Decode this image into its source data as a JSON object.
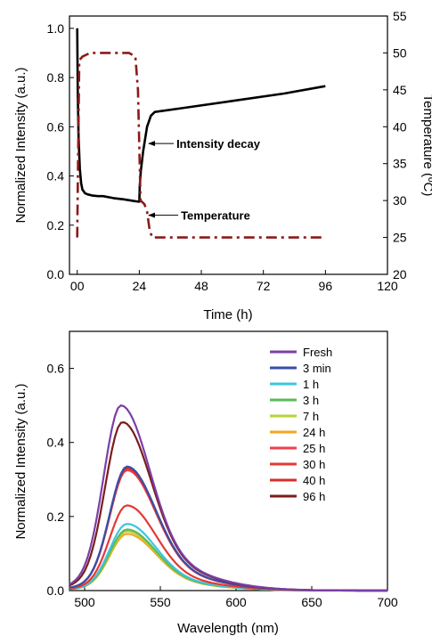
{
  "chart_data": [
    {
      "type": "line",
      "title": "",
      "xlabel": "Time (h)",
      "ylabel": "Normalized Intensity (a.u.)",
      "y2label": "Temperature (ºC)",
      "xlim": [
        -3,
        120
      ],
      "ylim": [
        0,
        1.05
      ],
      "y2lim": [
        20,
        55
      ],
      "xticks": [
        "00",
        "24",
        "48",
        "72",
        "96",
        "120"
      ],
      "yticks": [
        "0.0",
        "0.2",
        "0.4",
        "0.6",
        "0.8",
        "1.0"
      ],
      "y2ticks": [
        "20",
        "25",
        "30",
        "35",
        "40",
        "45",
        "50",
        "55"
      ],
      "grid": false,
      "series": [
        {
          "name": "Intensity decay",
          "axis": "left",
          "color": "#000000",
          "style": "solid",
          "x": [
            0,
            0.2,
            0.5,
            1,
            1.5,
            2,
            3,
            4,
            6,
            8,
            10,
            14,
            18,
            22,
            24,
            24.2,
            24.6,
            25.5,
            27,
            28.5,
            30,
            40,
            60,
            80,
            96
          ],
          "y": [
            1.0,
            0.74,
            0.56,
            0.43,
            0.37,
            0.345,
            0.33,
            0.325,
            0.32,
            0.318,
            0.318,
            0.31,
            0.305,
            0.298,
            0.295,
            0.36,
            0.42,
            0.5,
            0.6,
            0.645,
            0.66,
            0.675,
            0.705,
            0.735,
            0.765
          ]
        },
        {
          "name": "Temperature",
          "axis": "right",
          "color": "#8b1a1a",
          "style": "dash-dot",
          "x": [
            0,
            0.3,
            0.8,
            2,
            5,
            10,
            15,
            20,
            22.5,
            23.5,
            24.5,
            26,
            27,
            28,
            29,
            32,
            50,
            70,
            96
          ],
          "y": [
            25,
            35,
            49,
            49.5,
            50,
            50,
            50,
            50,
            49.5,
            45,
            30,
            29.5,
            28.5,
            26,
            25,
            25,
            25,
            25,
            25
          ]
        }
      ],
      "annotations": [
        {
          "text": "Intensity decay",
          "x": 27,
          "y": 0.55
        },
        {
          "text": "Temperature",
          "x": 27,
          "y": 28.5
        }
      ]
    },
    {
      "type": "line",
      "title": "",
      "xlabel": "Wavelength (nm)",
      "ylabel": "Normalized Intensity (a.u.)",
      "xlim": [
        490,
        700
      ],
      "ylim": [
        0,
        0.7
      ],
      "xticks": [
        "500",
        "550",
        "600",
        "650",
        "700"
      ],
      "yticks": [
        "0.0",
        "0.2",
        "0.4",
        "0.6"
      ],
      "grid": false,
      "legend": "top-right",
      "series": [
        {
          "name": "Fresh",
          "color": "#7b3fa8",
          "peak": 0.5
        },
        {
          "name": "3 min",
          "color": "#3a4ea8",
          "peak": 0.335
        },
        {
          "name": "1 h",
          "color": "#3fc4e0",
          "peak": 0.18
        },
        {
          "name": "3 h",
          "color": "#5cb85c",
          "peak": 0.165
        },
        {
          "name": "7 h",
          "color": "#b5d334",
          "peak": 0.16
        },
        {
          "name": "24 h",
          "color": "#f5a623",
          "peak": 0.153
        },
        {
          "name": "25 h",
          "color": "#f0414a",
          "peak": 0.325
        },
        {
          "name": "30 h",
          "color": "#e53935",
          "peak": 0.23
        },
        {
          "name": "40 h",
          "color": "#d32f2f",
          "peak": 0.33
        },
        {
          "name": "96 h",
          "color": "#7b1c1c",
          "peak": 0.455
        }
      ]
    }
  ]
}
